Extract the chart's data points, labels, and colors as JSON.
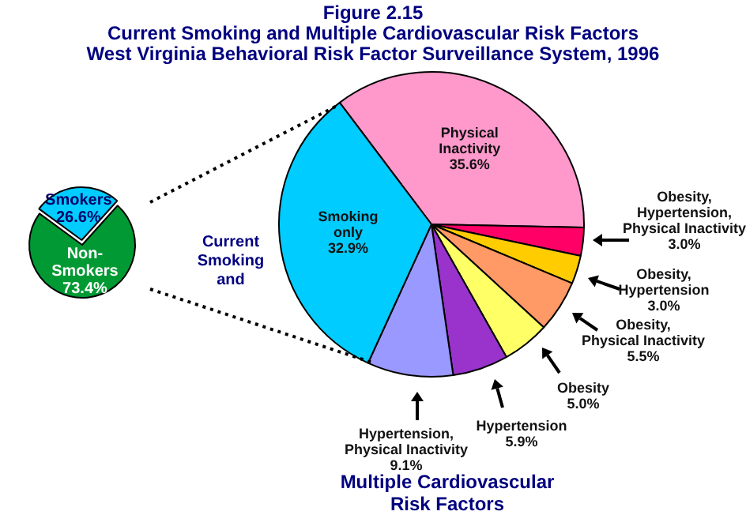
{
  "chart_data": [
    {
      "type": "pie",
      "title": "Figure 2.15\nCurrent Smoking and Multiple Cardiovascular Risk Factors\nWest Virginia Behavioral Risk Factor Surveillance System, 1996",
      "annotations": [
        "Current Smoking and"
      ],
      "categories": [
        "Non-Smokers",
        "Smokers"
      ],
      "values": [
        73.4,
        26.6
      ],
      "value_labels": [
        "73.4%",
        "26.6%"
      ],
      "colors": [
        "#009933",
        "#00ccff"
      ],
      "legend": false
    },
    {
      "type": "pie",
      "title": "Multiple Cardiovascular Risk Factors",
      "categories": [
        "Physical Inactivity",
        "Obesity, Hypertension, Physical Inactivity",
        "Obesity, Hypertension",
        "Obesity, Physical Inactivity",
        "Obesity",
        "Hypertension",
        "Hypertension, Physical Inactivity",
        "Smoking only"
      ],
      "values": [
        35.6,
        3.0,
        3.0,
        5.5,
        5.0,
        5.9,
        9.1,
        32.9
      ],
      "value_labels": [
        "35.6%",
        "3.0%",
        "3.0%",
        "5.5%",
        "5.0%",
        "5.9%",
        "9.1%",
        "32.9%"
      ],
      "colors": [
        "#ff99cc",
        "#ff0066",
        "#ffcc00",
        "#ff9966",
        "#ffff66",
        "#9933cc",
        "#9999ff",
        "#00ccff"
      ],
      "legend": false
    }
  ]
}
